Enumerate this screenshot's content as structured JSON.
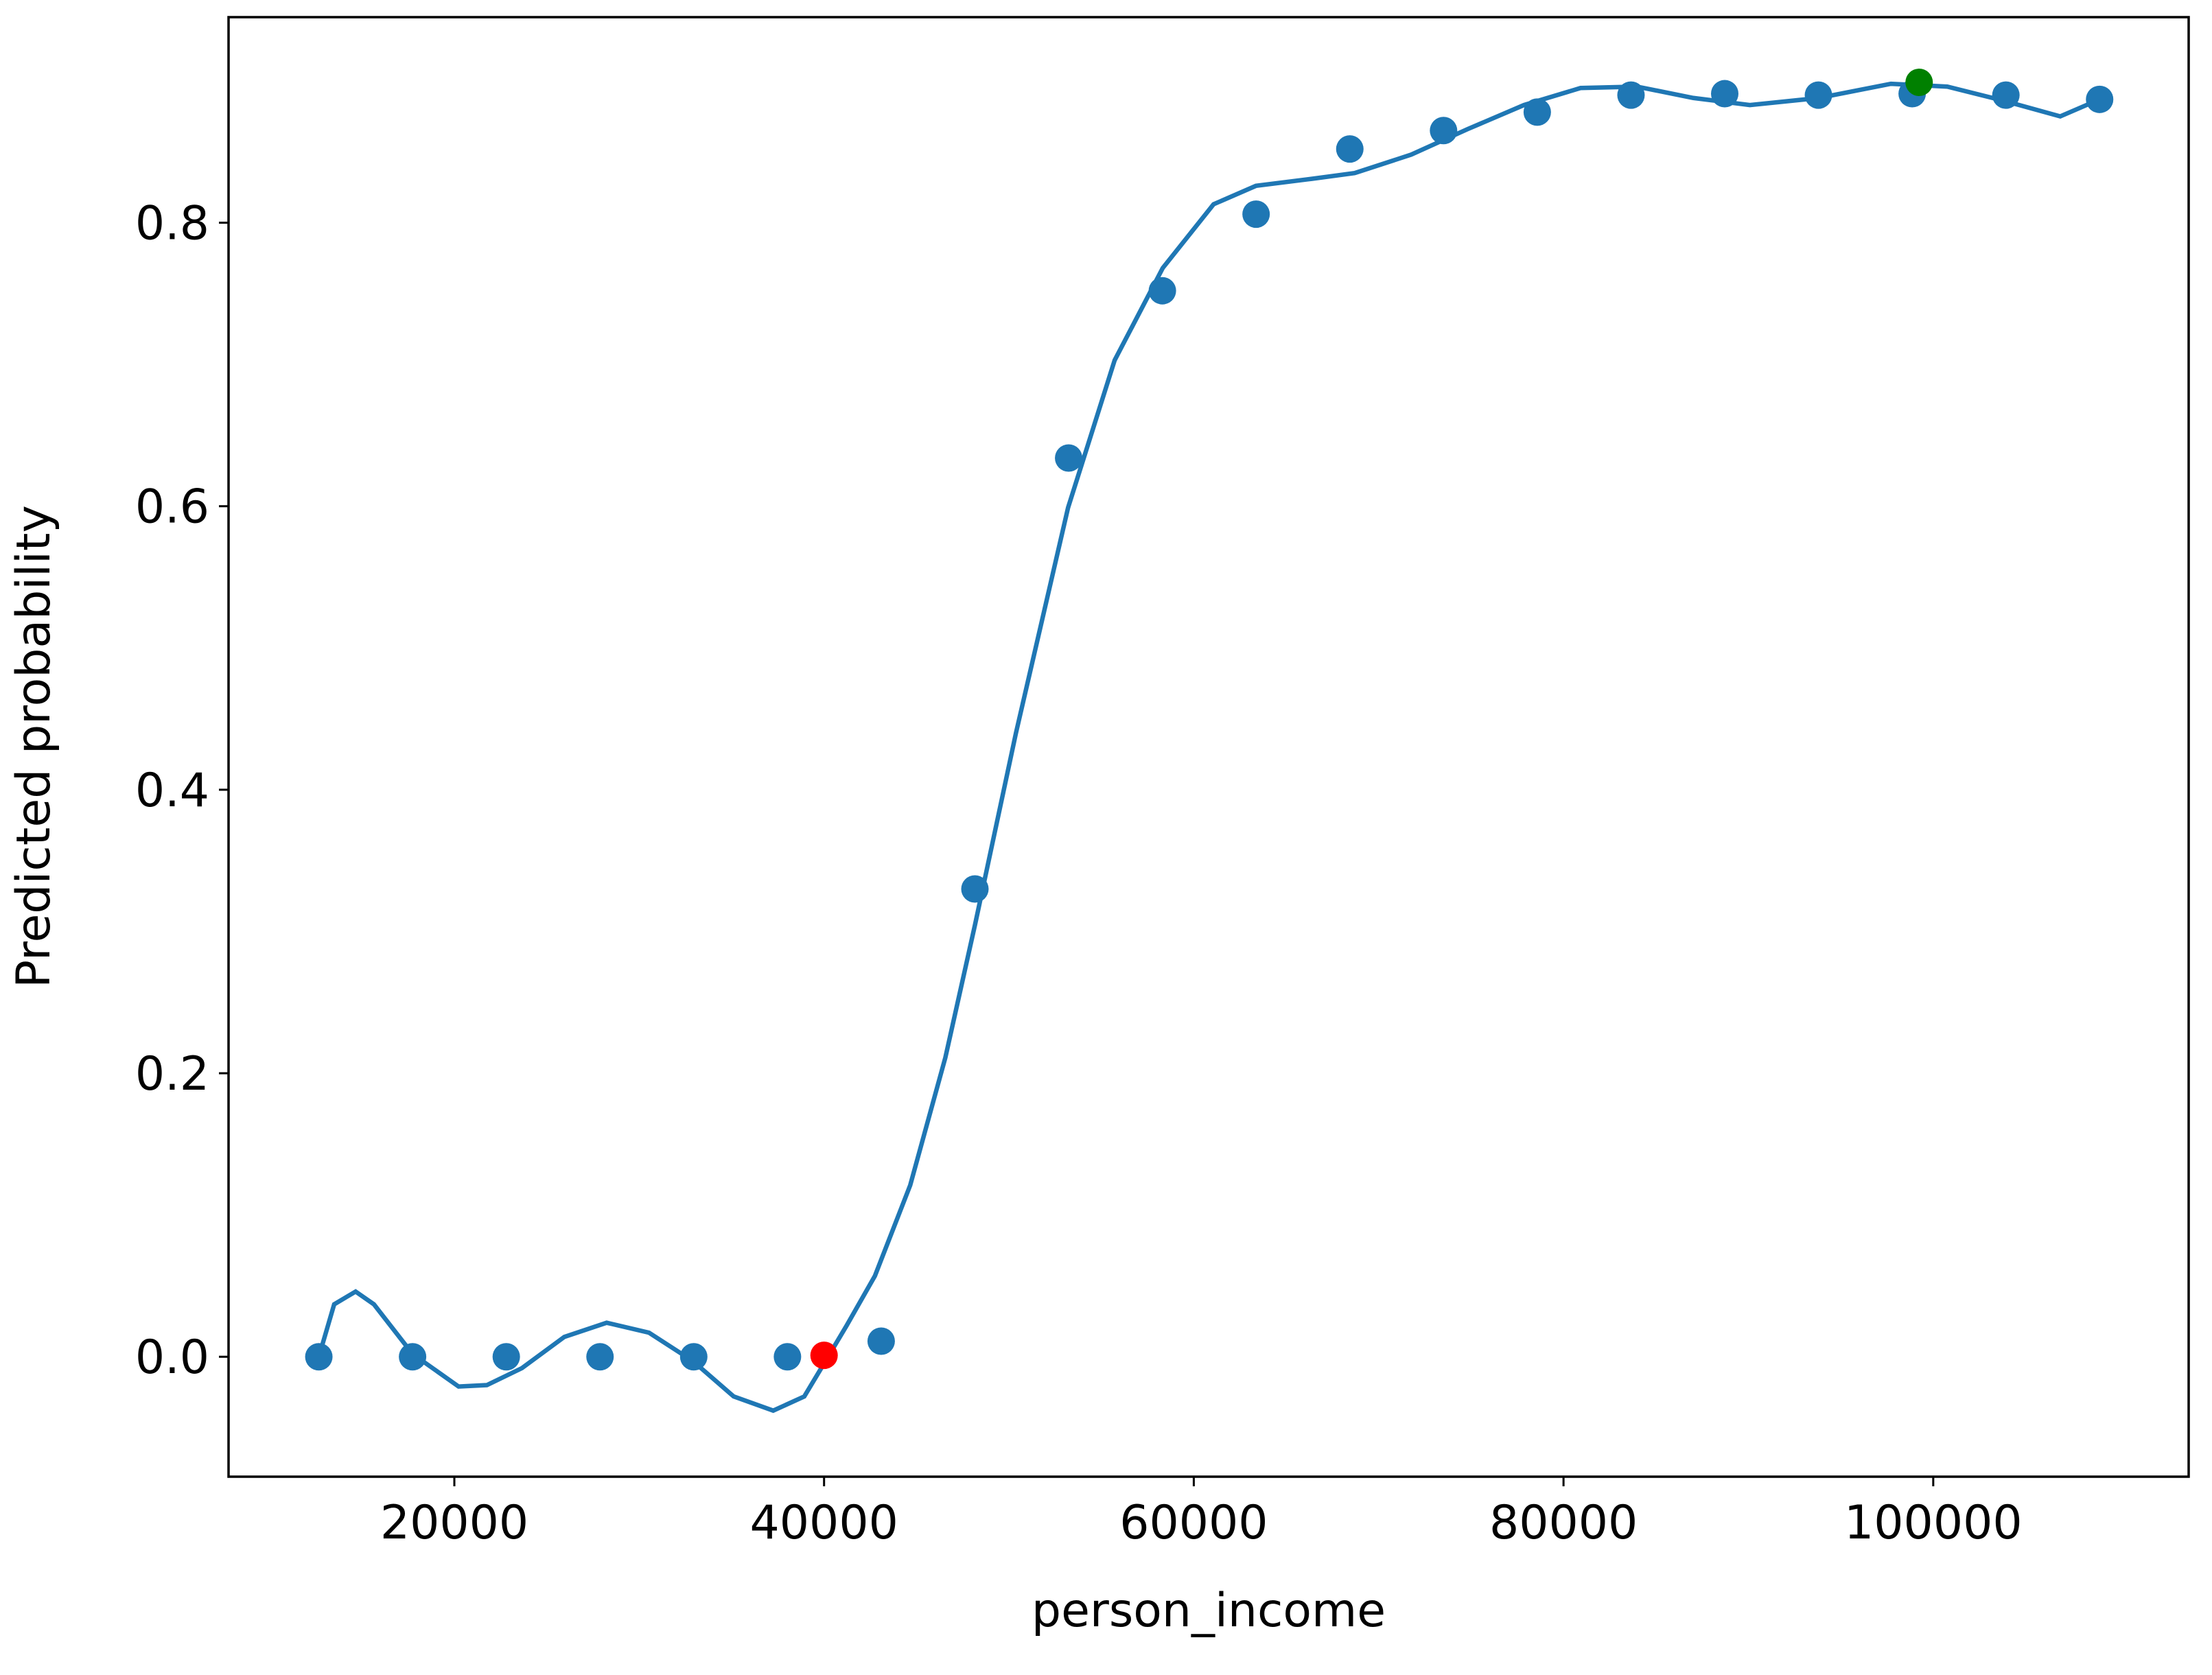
{
  "chart_data": {
    "type": "scatter",
    "x_label": "person_income",
    "y_label": "Predicted probability",
    "xlim": [
      7786,
      113817
    ],
    "ylim": [
      -0.0846,
      0.945
    ],
    "xticks": [
      20000,
      40000,
      60000,
      80000,
      100000
    ],
    "yticks": [
      {
        "value": 0,
        "label": "0.0"
      },
      0.2,
      0.4,
      0.6,
      0.8
    ],
    "grid": false,
    "series": [
      {
        "type": "line",
        "color": "#1f77b4",
        "x": [
          12670,
          13500,
          14660,
          15650,
          17740,
          20230,
          21760,
          23660,
          25950,
          28240,
          30530,
          32900,
          35110,
          37250,
          38930,
          40080,
          41220,
          42750,
          44660,
          46560,
          48170,
          50380,
          53200,
          55720,
          58320,
          61070,
          63360,
          66410,
          68700,
          71760,
          74810,
          77860,
          80920,
          83970,
          87020,
          90080,
          93820,
          97710,
          100760,
          103820,
          106870,
          109000
        ],
        "values": [
          0.0,
          0.037,
          0.046,
          0.037,
          0.002,
          -0.021,
          -0.02,
          -0.008,
          0.014,
          0.024,
          0.017,
          -0.003,
          -0.028,
          -0.038,
          -0.028,
          -0.003,
          0.022,
          0.057,
          0.121,
          0.211,
          0.305,
          0.44,
          0.599,
          0.703,
          0.768,
          0.813,
          0.826,
          0.831,
          0.835,
          0.848,
          0.866,
          0.883,
          0.895,
          0.896,
          0.888,
          0.883,
          0.888,
          0.898,
          0.896,
          0.886,
          0.875,
          0.887
        ]
      },
      {
        "type": "scatter",
        "color": "#1f77b4",
        "x": [
          12670,
          17740,
          22810,
          27880,
          32950,
          38020,
          43090,
          48160,
          53230,
          58300,
          63370,
          68440,
          73510,
          78580,
          83650,
          88720,
          93790,
          98860,
          103930,
          109000
        ],
        "values": [
          0.0,
          0.0,
          0.0,
          0.0,
          0.0,
          0.0,
          0.011,
          0.33,
          0.634,
          0.752,
          0.806,
          0.852,
          0.865,
          0.878,
          0.89,
          0.891,
          0.89,
          0.891,
          0.89,
          0.887
        ]
      },
      {
        "type": "scatter",
        "color": "#ff0000",
        "x": [
          40000
        ],
        "values": [
          0.001
        ]
      },
      {
        "type": "scatter",
        "color": "#008000",
        "x": [
          99237
        ],
        "values": [
          0.899
        ]
      }
    ]
  }
}
